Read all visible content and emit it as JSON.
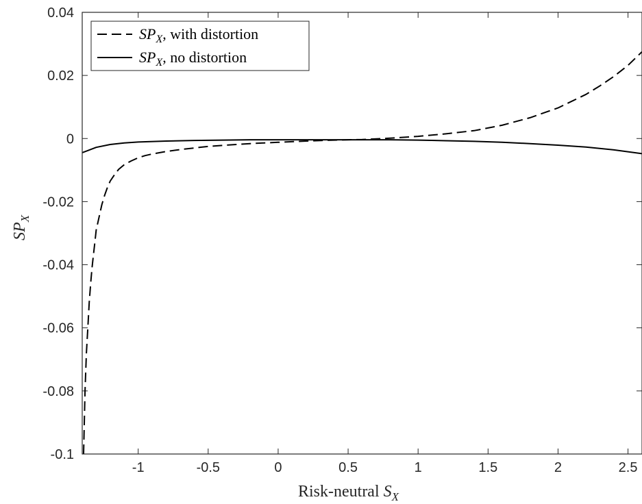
{
  "chart_data": {
    "type": "line",
    "title": "",
    "xlabel": {
      "prefix": "Risk-neutral ",
      "var": "S",
      "sub": "X"
    },
    "ylabel": {
      "var": "SP",
      "sub": "X"
    },
    "xlim": [
      -1.4,
      2.6
    ],
    "ylim": [
      -0.1,
      0.04
    ],
    "xticks": [
      -1,
      -0.5,
      0,
      0.5,
      1,
      1.5,
      2,
      2.5
    ],
    "xtick_labels": [
      "-1",
      "-0.5",
      "0",
      "0.5",
      "1",
      "1.5",
      "2",
      "2.5"
    ],
    "yticks": [
      -0.1,
      -0.08,
      -0.06,
      -0.04,
      -0.02,
      0,
      0.02,
      0.04
    ],
    "ytick_labels": [
      "-0.1",
      "-0.08",
      "-0.06",
      "-0.04",
      "-0.02",
      "0",
      "0.02",
      "0.04"
    ],
    "grid": false,
    "legend_position": "top-left",
    "series": [
      {
        "name_var": "SP",
        "name_sub": "X",
        "name_suffix": ", with distortion",
        "style": "dashed",
        "color": "#000000",
        "x": [
          -1.39,
          -1.38,
          -1.37,
          -1.36,
          -1.35,
          -1.34,
          -1.33,
          -1.32,
          -1.31,
          -1.3,
          -1.28,
          -1.26,
          -1.24,
          -1.22,
          -1.2,
          -1.17,
          -1.14,
          -1.1,
          -1.05,
          -1.0,
          -0.95,
          -0.9,
          -0.8,
          -0.7,
          -0.6,
          -0.5,
          -0.4,
          -0.3,
          -0.2,
          -0.1,
          0.0,
          0.2,
          0.4,
          0.6,
          0.8,
          1.0,
          1.2,
          1.4,
          1.6,
          1.8,
          2.0,
          2.2,
          2.3,
          2.4,
          2.5,
          2.6
        ],
        "y": [
          -0.1,
          -0.08,
          -0.068,
          -0.06,
          -0.052,
          -0.046,
          -0.041,
          -0.037,
          -0.033,
          -0.029,
          -0.025,
          -0.021,
          -0.018,
          -0.0155,
          -0.0135,
          -0.0115,
          -0.0098,
          -0.0083,
          -0.0071,
          -0.0061,
          -0.0054,
          -0.0049,
          -0.0041,
          -0.0035,
          -0.003,
          -0.0025,
          -0.0022,
          -0.0019,
          -0.0016,
          -0.0014,
          -0.0012,
          -0.0008,
          -0.0005,
          -0.0003,
          0.0001,
          0.0007,
          0.0015,
          0.0025,
          0.0042,
          0.0066,
          0.0097,
          0.014,
          0.0167,
          0.0197,
          0.0232,
          0.0275
        ]
      },
      {
        "name_var": "SP",
        "name_sub": "X",
        "name_suffix": ", no distortion",
        "style": "solid",
        "color": "#000000",
        "x": [
          -1.4,
          -1.3,
          -1.2,
          -1.1,
          -1.0,
          -0.8,
          -0.6,
          -0.4,
          -0.2,
          0.0,
          0.2,
          0.4,
          0.6,
          0.8,
          1.0,
          1.2,
          1.4,
          1.6,
          1.8,
          2.0,
          2.2,
          2.4,
          2.6
        ],
        "y": [
          -0.0045,
          -0.0028,
          -0.0019,
          -0.0014,
          -0.0011,
          -0.0008,
          -0.0006,
          -0.0005,
          -0.0004,
          -0.0004,
          -0.0004,
          -0.0004,
          -0.0004,
          -0.0004,
          -0.0005,
          -0.0007,
          -0.0009,
          -0.0012,
          -0.0016,
          -0.0021,
          -0.0027,
          -0.0036,
          -0.0048
        ]
      }
    ]
  }
}
